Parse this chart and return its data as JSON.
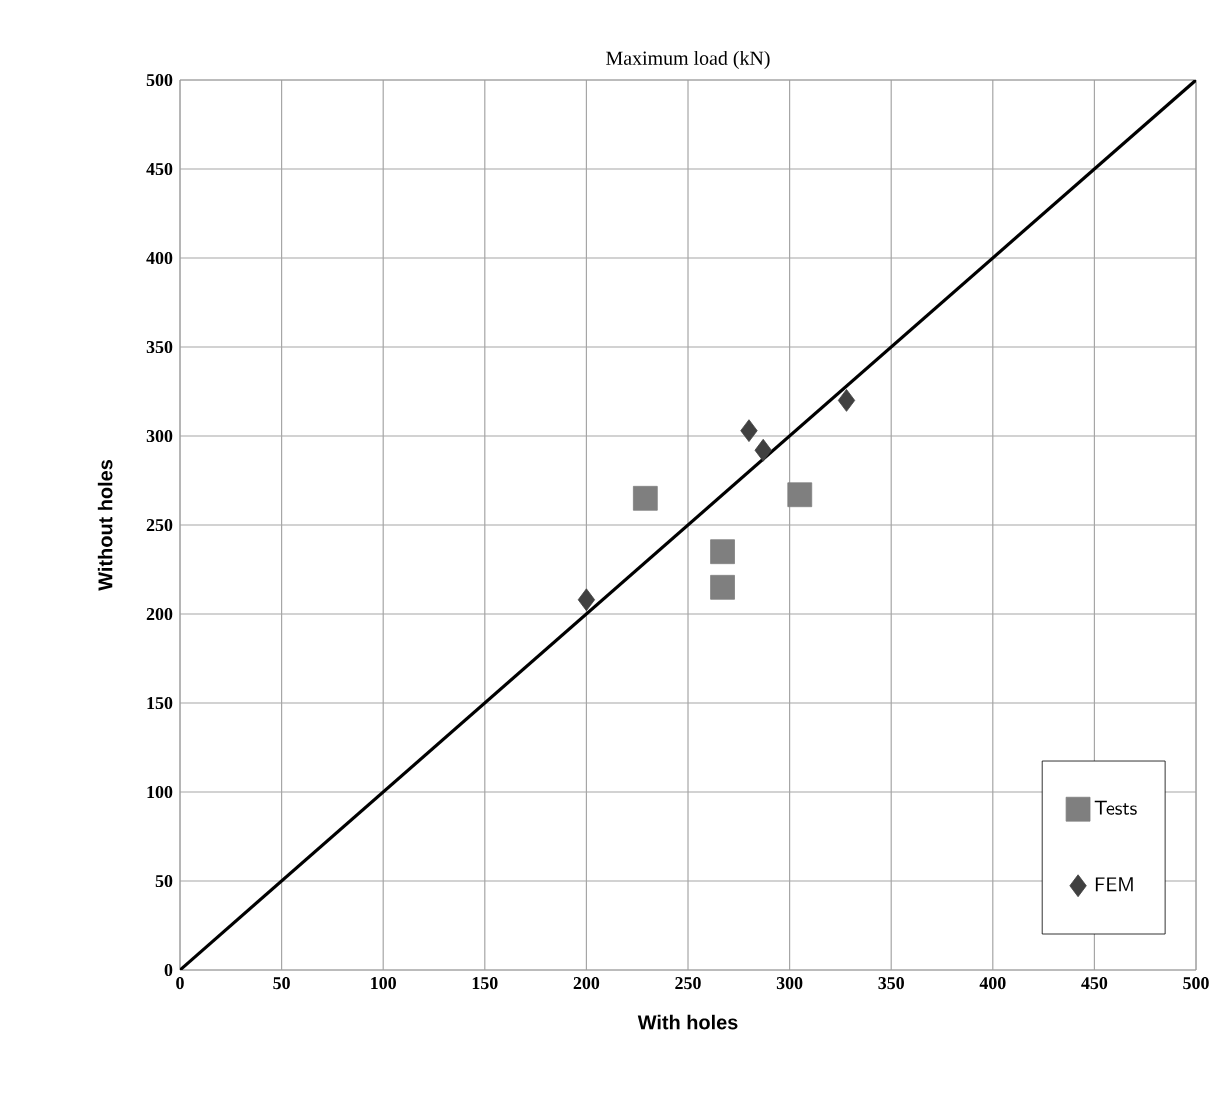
{
  "chart_data": {
    "type": "scatter",
    "title": "Maximum load (kN)",
    "xlabel": "With holes",
    "ylabel": "Without holes",
    "xlim": [
      0,
      500
    ],
    "ylim": [
      0,
      500
    ],
    "xticks": [
      0,
      50,
      100,
      150,
      200,
      250,
      300,
      350,
      400,
      450,
      500
    ],
    "yticks": [
      0,
      50,
      100,
      150,
      200,
      250,
      300,
      350,
      400,
      450,
      500
    ],
    "grid": true,
    "legend": "bottom right",
    "series": [
      {
        "name": "Tests",
        "marker": "square",
        "color": "#7f7f7f",
        "x": [
          229,
          267,
          267,
          305
        ],
        "values": [
          265,
          235,
          215,
          267
        ]
      },
      {
        "name": "FEM",
        "marker": "diamond",
        "color": "#404040",
        "x": [
          200,
          280,
          287,
          328
        ],
        "values": [
          208,
          303,
          292,
          320
        ]
      },
      {
        "type": "line",
        "marker": "none",
        "color": "#000000",
        "x": [
          0,
          500
        ],
        "values": [
          0,
          500
        ]
      }
    ]
  }
}
